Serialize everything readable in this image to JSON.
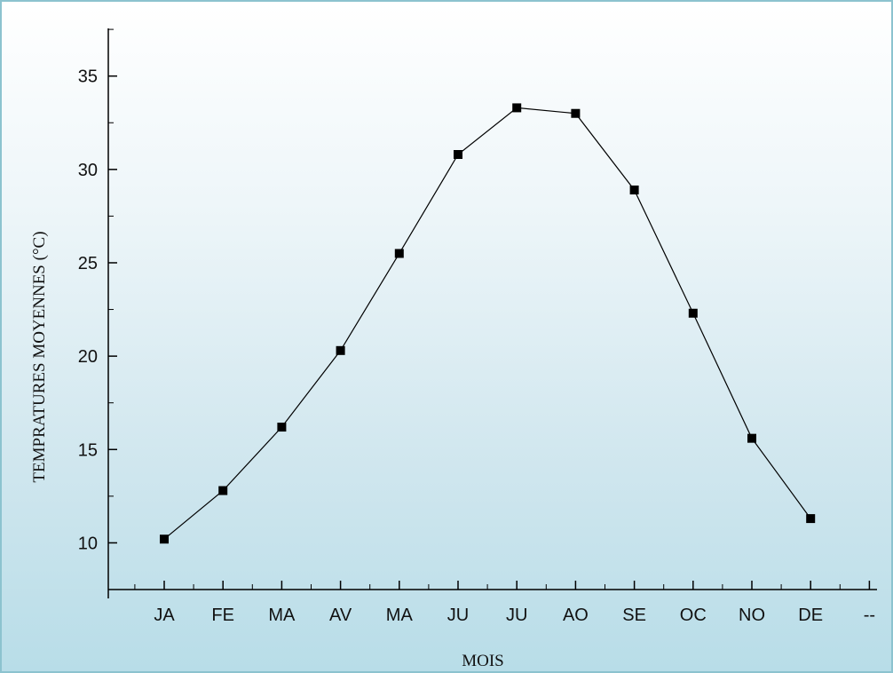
{
  "chart_data": {
    "type": "line",
    "categories": [
      "JA",
      "FE",
      "MA",
      "AV",
      "MA",
      "JU",
      "JU",
      "AO",
      "SE",
      "OC",
      "NO",
      "DE"
    ],
    "extra_tick_label": "--",
    "values": [
      10.2,
      12.8,
      16.2,
      20.3,
      25.5,
      30.8,
      33.3,
      33.0,
      28.9,
      22.3,
      15.6,
      11.3
    ],
    "xlabel": "MOIS",
    "ylabel": "TEMPRATURES MOYENNES (°C)",
    "ylim": [
      7.5,
      37.5
    ],
    "yticks": [
      10,
      15,
      20,
      25,
      30,
      35
    ],
    "ytick_labels": [
      "10",
      "15",
      "20",
      "25",
      "30",
      "35"
    ],
    "marker": "square",
    "grid": false,
    "line_color": "#000000",
    "background": "light-blue gradient"
  }
}
